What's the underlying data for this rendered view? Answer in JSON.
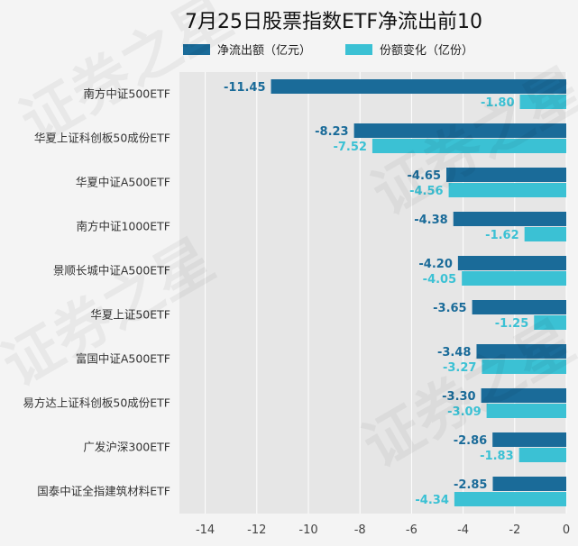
{
  "chart_data": {
    "type": "bar",
    "orientation": "horizontal",
    "title": "7月25日股票指数ETF净流出前10",
    "categories": [
      "南方中证500ETF",
      "华夏上证科创板50成份ETF",
      "华夏中证A500ETF",
      "南方中证1000ETF",
      "景顺长城中证A500ETF",
      "华夏上证50ETF",
      "富国中证A500ETF",
      "易方达上证科创板50成份ETF",
      "广发沪深300ETF",
      "国泰中证全指建筑材料ETF"
    ],
    "series": [
      {
        "name": "净流出额（亿元）",
        "color": "#1a6b99",
        "values": [
          -11.45,
          -8.23,
          -4.65,
          -4.38,
          -4.2,
          -3.65,
          -3.48,
          -3.3,
          -2.86,
          -2.85
        ],
        "labels": [
          "-11.45",
          "-8.23",
          "-4.65",
          "-4.38",
          "-4.20",
          "-3.65",
          "-3.48",
          "-3.30",
          "-2.86",
          "-2.85"
        ]
      },
      {
        "name": "份额变化（亿份）",
        "color": "#3bc1d4",
        "values": [
          -1.8,
          -7.52,
          -4.56,
          -1.62,
          -4.05,
          -1.25,
          -3.27,
          -3.09,
          -1.83,
          -4.34
        ],
        "labels": [
          "-1.80",
          "-7.52",
          "-4.56",
          "-1.62",
          "-4.05",
          "-1.25",
          "-3.27",
          "-3.09",
          "-1.83",
          "-4.34"
        ]
      }
    ],
    "xlim": [
      -15,
      0
    ],
    "xticks": [
      -14,
      -12,
      -10,
      -8,
      -6,
      -4,
      -2,
      0
    ],
    "xtick_labels": [
      "-14",
      "-12",
      "-10",
      "-8",
      "-6",
      "-4",
      "-2",
      "0"
    ],
    "grid": "vertical",
    "legend_position": "top"
  },
  "watermark": "证券之星"
}
